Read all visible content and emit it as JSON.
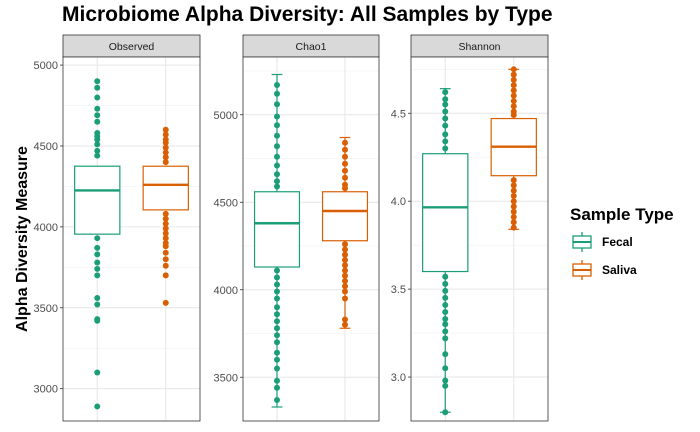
{
  "title": "Microbiome Alpha Diversity: All Samples by Type",
  "ylabel": "Alpha Diversity Measure",
  "legend": {
    "title": "Sample Type",
    "items": [
      {
        "label": "Fecal",
        "color": "#1b9e77"
      },
      {
        "label": "Saliva",
        "color": "#d95f02"
      }
    ]
  },
  "chart_data": [
    {
      "type": "boxplot",
      "facet": "Observed",
      "ylim": [
        2800,
        5050
      ],
      "yticks": [
        3000,
        3500,
        4000,
        4500,
        5000
      ],
      "grid": true,
      "series": [
        {
          "name": "Fecal",
          "color": "#1b9e77",
          "q1": 3955,
          "median": 4225,
          "q3": 4375,
          "whisker_low": 3955,
          "whisker_high": 4375,
          "outliers": [
            4900,
            4860,
            4800,
            4730,
            4690,
            4650,
            4580,
            4560,
            4540,
            4510,
            4470,
            4440,
            3930,
            3870,
            3830,
            3780,
            3740,
            3700,
            3560,
            3520,
            3430,
            3420,
            3100,
            2890
          ]
        },
        {
          "name": "Saliva",
          "color": "#d95f02",
          "q1": 4105,
          "median": 4260,
          "q3": 4375,
          "whisker_low": 4105,
          "whisker_high": 4375,
          "outliers": [
            4600,
            4570,
            4540,
            4520,
            4490,
            4460,
            4430,
            4400,
            4080,
            4050,
            4020,
            3990,
            3960,
            3930,
            3900,
            3880,
            3840,
            3800,
            3760,
            3700,
            3530
          ]
        }
      ]
    },
    {
      "type": "boxplot",
      "facet": "Chao1",
      "ylim": [
        3250,
        5330
      ],
      "yticks": [
        3500,
        4000,
        4500,
        5000
      ],
      "grid": true,
      "series": [
        {
          "name": "Fecal",
          "color": "#1b9e77",
          "q1": 4130,
          "median": 4380,
          "q3": 4560,
          "whisker_low": 3330,
          "whisker_high": 5230,
          "outliers": [
            5170,
            5120,
            5060,
            4990,
            4940,
            4880,
            4820,
            4760,
            4710,
            4660,
            4620,
            4590,
            4110,
            4070,
            4030,
            3990,
            3950,
            3900,
            3860,
            3820,
            3780,
            3740,
            3700,
            3640,
            3600,
            3550,
            3480,
            3440,
            3370
          ]
        },
        {
          "name": "Saliva",
          "color": "#d95f02",
          "q1": 4280,
          "median": 4450,
          "q3": 4560,
          "whisker_low": 3780,
          "whisker_high": 4870,
          "outliers": [
            4840,
            4800,
            4760,
            4720,
            4680,
            4640,
            4600,
            4580,
            4260,
            4230,
            4200,
            4170,
            4140,
            4110,
            4080,
            4050,
            4020,
            3990,
            3950,
            3830,
            3800
          ]
        }
      ]
    },
    {
      "type": "boxplot",
      "facet": "Shannon",
      "ylim": [
        2.75,
        4.82
      ],
      "yticks": [
        3.0,
        3.5,
        4.0,
        4.5
      ],
      "grid": true,
      "series": [
        {
          "name": "Fecal",
          "color": "#1b9e77",
          "q1": 3.6,
          "median": 3.965,
          "q3": 4.27,
          "whisker_low": 2.8,
          "whisker_high": 4.64,
          "outliers": [
            4.62,
            4.58,
            4.55,
            4.51,
            4.47,
            4.43,
            4.38,
            4.34,
            4.3,
            3.57,
            3.53,
            3.49,
            3.45,
            3.41,
            3.37,
            3.33,
            3.3,
            3.26,
            3.22,
            3.13,
            3.05,
            2.98,
            2.95,
            2.8
          ]
        },
        {
          "name": "Saliva",
          "color": "#d95f02",
          "q1": 4.145,
          "median": 4.31,
          "q3": 4.47,
          "whisker_low": 3.84,
          "whisker_high": 4.75,
          "outliers": [
            4.75,
            4.72,
            4.69,
            4.66,
            4.63,
            4.6,
            4.57,
            4.54,
            4.51,
            4.49,
            4.12,
            4.09,
            4.06,
            4.03,
            4.0,
            3.97,
            3.94,
            3.91,
            3.88,
            3.85
          ]
        }
      ]
    }
  ]
}
